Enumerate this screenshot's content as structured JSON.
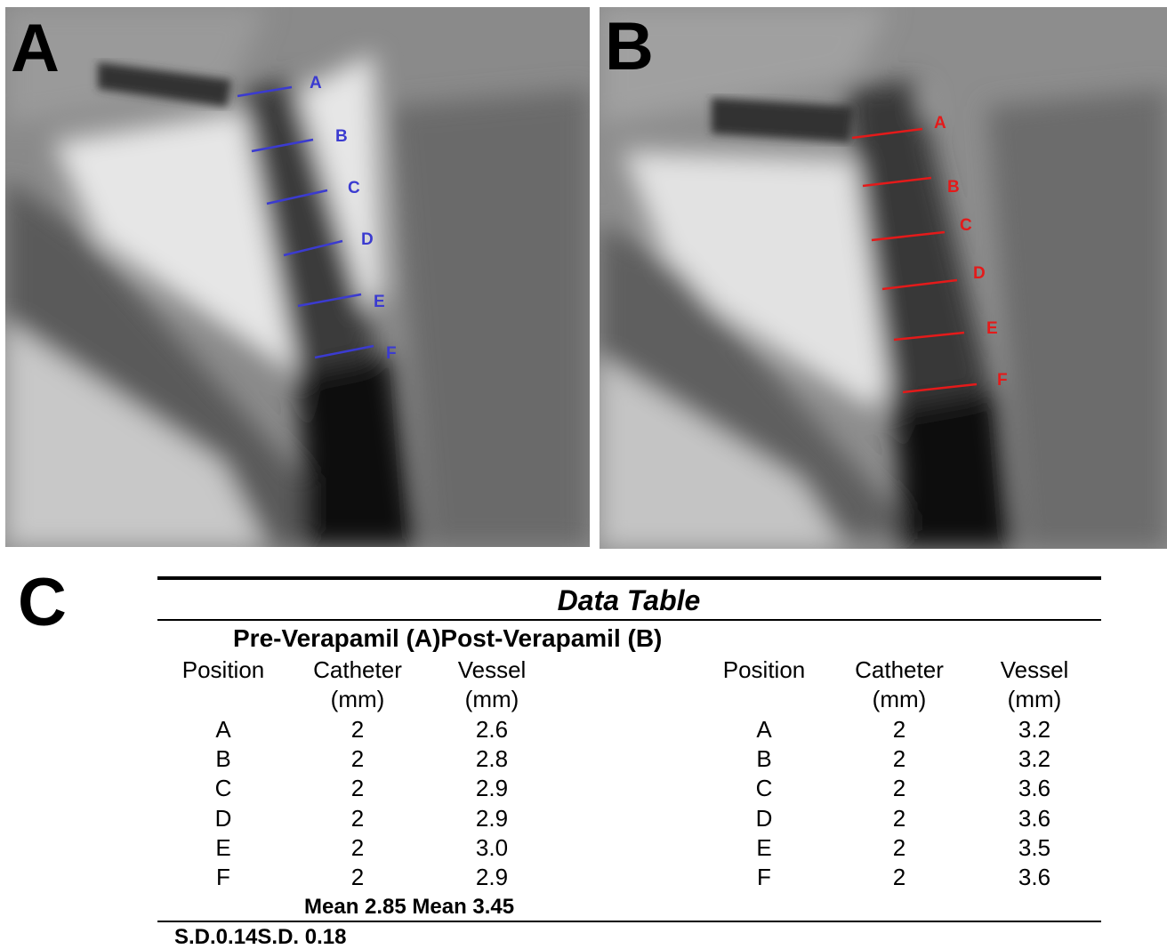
{
  "panels": [
    {
      "label": "A",
      "markers": [
        "A",
        "B",
        "C",
        "D",
        "E",
        "F"
      ]
    },
    {
      "label": "B",
      "markers": [
        "A",
        "B",
        "C",
        "D",
        "E",
        "F"
      ]
    }
  ],
  "table": {
    "panel_label": "C",
    "title": "Data Table",
    "groups": [
      "Pre-Verapamil (A)",
      "Post-Verapamil (B)"
    ],
    "columns": [
      {
        "name": "Position"
      },
      {
        "name": "Catheter",
        "unit": "(mm)"
      },
      {
        "name": "Vessel",
        "unit": "(mm)"
      }
    ],
    "rows_pre": [
      [
        "A",
        "2",
        "2.6"
      ],
      [
        "B",
        "2",
        "2.8"
      ],
      [
        "C",
        "2",
        "2.9"
      ],
      [
        "D",
        "2",
        "2.9"
      ],
      [
        "E",
        "2",
        "3.0"
      ],
      [
        "F",
        "2",
        "2.9"
      ]
    ],
    "rows_post": [
      [
        "A",
        "2",
        "3.2"
      ],
      [
        "B",
        "2",
        "3.2"
      ],
      [
        "C",
        "2",
        "3.6"
      ],
      [
        "D",
        "2",
        "3.6"
      ],
      [
        "E",
        "2",
        "3.5"
      ],
      [
        "F",
        "2",
        "3.6"
      ]
    ],
    "mean_row": "Mean 2.85 Mean 3.45",
    "sd_row": "S.D.0.14S.D. 0.18"
  }
}
